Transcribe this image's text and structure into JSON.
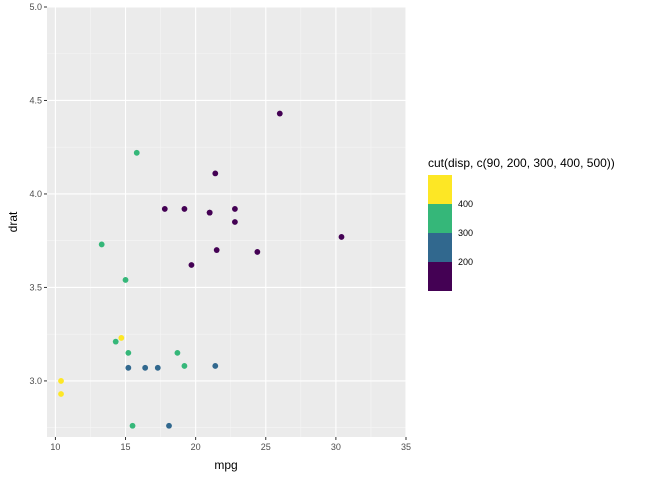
{
  "chart_data": {
    "type": "scatter",
    "title": "",
    "xlabel": "mpg",
    "ylabel": "drat",
    "xlim": [
      9.4,
      35.0
    ],
    "ylim": [
      2.7,
      5.0
    ],
    "x_ticks": [
      10,
      15,
      20,
      25,
      30,
      35
    ],
    "y_ticks": [
      3.0,
      3.5,
      4.0,
      4.5,
      5.0
    ],
    "x_tick_labels": [
      "10",
      "15",
      "20",
      "25",
      "30",
      "35"
    ],
    "y_tick_labels": [
      "3.0",
      "3.5",
      "4.0",
      "4.5",
      "5.0"
    ],
    "grid": true,
    "legend": {
      "title": "cut(disp, c(90, 200, 300, 400, 500))",
      "placement": "right",
      "colors_top_to_bottom": [
        "#fde725",
        "#35b779",
        "#31688e",
        "#440154"
      ],
      "tick_labels": [
        "400",
        "300",
        "200"
      ]
    },
    "points": [
      {
        "x": 26.0,
        "y": 4.43,
        "color": "#440154"
      },
      {
        "x": 21.4,
        "y": 4.11,
        "color": "#440154"
      },
      {
        "x": 17.8,
        "y": 3.92,
        "color": "#440154"
      },
      {
        "x": 19.2,
        "y": 3.92,
        "color": "#440154"
      },
      {
        "x": 21.0,
        "y": 3.9,
        "color": "#440154"
      },
      {
        "x": 21.0,
        "y": 3.9,
        "color": "#440154"
      },
      {
        "x": 22.8,
        "y": 3.92,
        "color": "#440154"
      },
      {
        "x": 22.8,
        "y": 3.85,
        "color": "#440154"
      },
      {
        "x": 30.4,
        "y": 3.77,
        "color": "#440154"
      },
      {
        "x": 21.5,
        "y": 3.7,
        "color": "#440154"
      },
      {
        "x": 24.4,
        "y": 3.69,
        "color": "#440154"
      },
      {
        "x": 19.7,
        "y": 3.62,
        "color": "#440154"
      },
      {
        "x": 15.8,
        "y": 4.22,
        "color": "#35b779"
      },
      {
        "x": 13.3,
        "y": 3.73,
        "color": "#35b779"
      },
      {
        "x": 15.0,
        "y": 3.54,
        "color": "#35b779"
      },
      {
        "x": 14.3,
        "y": 3.21,
        "color": "#35b779"
      },
      {
        "x": 15.2,
        "y": 3.15,
        "color": "#35b779"
      },
      {
        "x": 18.7,
        "y": 3.15,
        "color": "#35b779"
      },
      {
        "x": 19.2,
        "y": 3.08,
        "color": "#35b779"
      },
      {
        "x": 15.5,
        "y": 2.76,
        "color": "#35b779"
      },
      {
        "x": 15.2,
        "y": 3.07,
        "color": "#31688e"
      },
      {
        "x": 16.4,
        "y": 3.07,
        "color": "#31688e"
      },
      {
        "x": 17.3,
        "y": 3.07,
        "color": "#31688e"
      },
      {
        "x": 21.4,
        "y": 3.08,
        "color": "#31688e"
      },
      {
        "x": 18.1,
        "y": 2.76,
        "color": "#31688e"
      },
      {
        "x": 14.7,
        "y": 3.23,
        "color": "#fde725"
      },
      {
        "x": 10.4,
        "y": 3.0,
        "color": "#fde725"
      },
      {
        "x": 10.4,
        "y": 2.93,
        "color": "#fde725"
      }
    ]
  }
}
